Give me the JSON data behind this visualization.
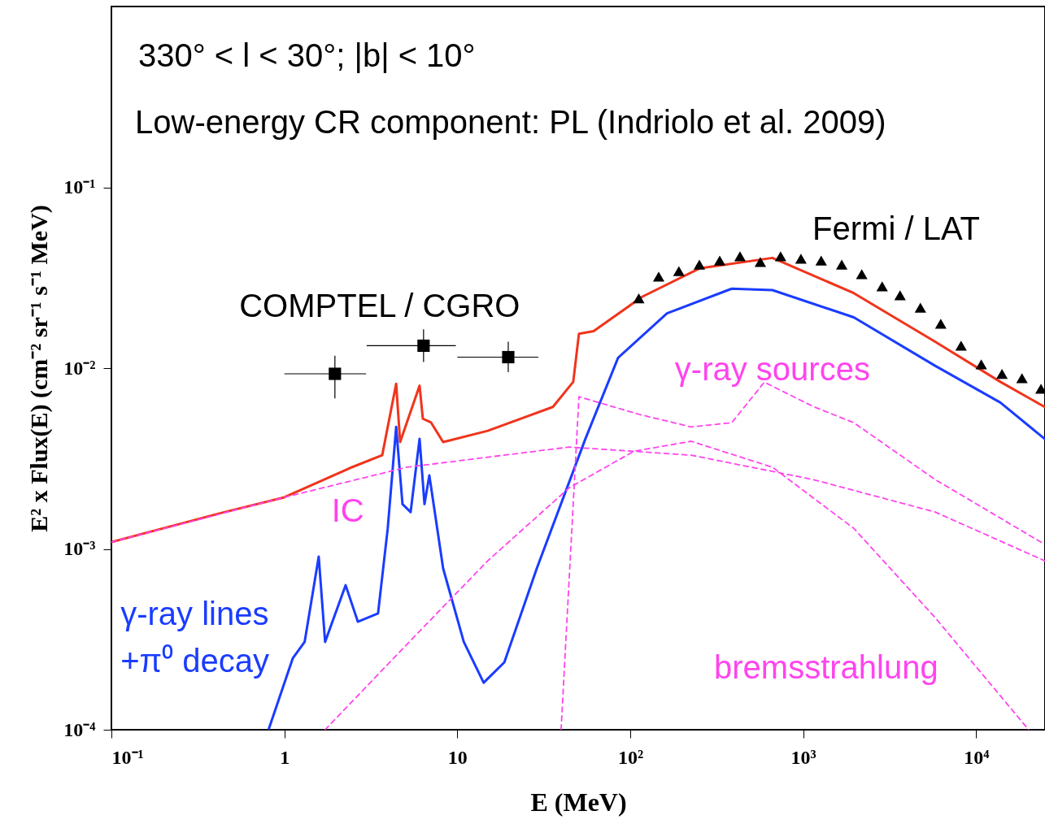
{
  "chart_data": {
    "type": "line",
    "xlabel": "E (MeV)",
    "ylabel": "E² x Flux(E)  (cm⁻² sr⁻¹ s⁻¹ MeV)",
    "log": "xy",
    "xlim": [
      0.1,
      25000
    ],
    "xticks": [
      {
        "value": 0.1,
        "label": "10⁻¹"
      },
      1,
      10,
      {
        "value": 100,
        "label": "10²"
      },
      {
        "value": 1000,
        "label": "10³"
      },
      {
        "value": 10000,
        "label": "10⁴"
      }
    ],
    "ylim": [
      0.0001,
      1
    ],
    "yticks": [
      {
        "value": 0.0001,
        "label": "10⁻⁴"
      },
      {
        "value": 0.001,
        "label": "10⁻³"
      },
      {
        "value": 0.01,
        "label": "10⁻²"
      },
      {
        "value": 0.1,
        "label": "10⁻¹"
      }
    ],
    "annotations": [
      "330° < l < 30°; |b| < 10°",
      "Low-energy CR component: PL (Indriolo et al. 2009)"
    ],
    "series": [
      {
        "color": "#f0341c",
        "x": [
          0.1,
          0.42,
          1,
          2.39,
          3.68,
          4.43,
          4.67,
          6.05,
          6.32,
          7.05,
          8.28,
          15,
          35.7,
          46.8,
          50.5,
          61.4,
          117,
          251,
          664,
          1960,
          5790,
          13800,
          24900
        ],
        "values": [
          0.00109,
          0.00157,
          0.00193,
          0.0028,
          0.0033,
          0.0082,
          0.0039,
          0.008,
          0.00525,
          0.005,
          0.0039,
          0.0045,
          0.0061,
          0.0084,
          0.0155,
          0.016,
          0.0248,
          0.0356,
          0.0407,
          0.026,
          0.014,
          0.0084,
          0.0061
        ]
      },
      {
        "name": "γ-ray lines\n+π⁰ decay",
        "color": "#1a3cff",
        "x": [
          0.81,
          1.12,
          1.31,
          1.58,
          1.72,
          2.26,
          2.66,
          3.48,
          3.96,
          4.43,
          4.82,
          5.37,
          6.05,
          6.46,
          6.89,
          8.28,
          10.9,
          14.2,
          18.7,
          28.8,
          55,
          85,
          163,
          386,
          664,
          1960,
          5790,
          13800,
          24900
        ],
        "values": [
          0.0001,
          0.000249,
          0.000306,
          0.000906,
          0.000306,
          0.00063,
          0.000396,
          0.00044,
          0.0013,
          0.00473,
          0.00177,
          0.0016,
          0.00406,
          0.00177,
          0.00255,
          0.00078,
          0.000306,
          0.000182,
          0.000236,
          0.00078,
          0.00406,
          0.0114,
          0.0201,
          0.0275,
          0.027,
          0.0191,
          0.0103,
          0.00645,
          0.00406
        ]
      },
      {
        "name": "IC",
        "color": "#ff44ee",
        "line_style": "dashed",
        "x": [
          0.1,
          1,
          5.1,
          44.4,
          225,
          1140,
          5790,
          24900
        ],
        "values": [
          0.00109,
          0.00193,
          0.00283,
          0.00366,
          0.0033,
          0.00242,
          0.0016,
          0.00086
        ]
      },
      {
        "name": "bremsstrahlung",
        "color": "#ff44ee",
        "line_style": "dashed",
        "x": [
          1.72,
          5.1,
          15,
          44.4,
          105,
          225,
          664,
          1960,
          5790,
          20100
        ],
        "values": [
          0.0001,
          0.000296,
          0.00086,
          0.00218,
          0.00347,
          0.00394,
          0.00283,
          0.0013,
          0.000417,
          0.0001
        ]
      },
      {
        "name": "γ-ray sources",
        "color": "#ff44ee",
        "line_style": "dashed",
        "x": [
          39.8,
          50.5,
          114,
          225,
          386,
          596,
          1140,
          1960,
          5790,
          24900
        ],
        "values": [
          0.0001,
          0.00695,
          0.00553,
          0.00473,
          0.00499,
          0.00836,
          0.00614,
          0.00499,
          0.00242,
          0.00106
        ]
      },
      {
        "type": "scatter",
        "name": "COMPTEL / CGRO",
        "color": "#000000",
        "marker": "square",
        "x": [
          1.96,
          6.38,
          19.7
        ],
        "values": [
          0.0093,
          0.0133,
          0.0115
        ],
        "xerrors": [
          [
            1,
            2.97
          ],
          [
            2.99,
            9.8
          ],
          [
            10,
            29.4
          ]
        ],
        "errors": [
          [
            0.0068,
            0.0117
          ],
          [
            0.0108,
            0.0164
          ],
          [
            0.0095,
            0.014
          ]
        ]
      },
      {
        "type": "scatter",
        "name": "Fermi / LAT",
        "color": "#000000",
        "marker": "triangle",
        "x": [
          112,
          146,
          191,
          251,
          329,
          431,
          565,
          740,
          970,
          1270,
          1670,
          2180,
          2860,
          3630,
          4760,
          6240,
          8180,
          10700,
          14100,
          18400,
          23700
        ],
        "values": [
          0.0243,
          0.0321,
          0.0344,
          0.0374,
          0.0394,
          0.0415,
          0.0386,
          0.0415,
          0.0403,
          0.0394,
          0.0374,
          0.0331,
          0.0283,
          0.0253,
          0.0216,
          0.0176,
          0.0133,
          0.0105,
          0.0093,
          0.0088,
          0.0077
        ]
      }
    ]
  }
}
